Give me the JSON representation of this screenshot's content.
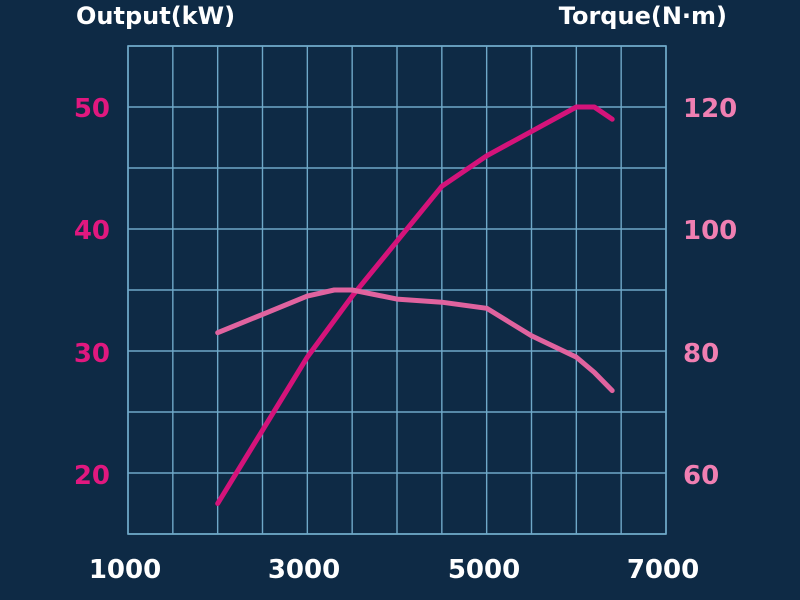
{
  "chart_data": {
    "type": "line",
    "title": "",
    "y_left_label": "Output(kW)",
    "y_right_label": "Torque(N·m)",
    "x_ticks": [
      "1000",
      "3000",
      "5000",
      "7000"
    ],
    "x_range": [
      1000,
      7000
    ],
    "y_left_range": [
      15,
      55
    ],
    "y_left_ticks": [
      "50",
      "40",
      "30",
      "20"
    ],
    "y_right_range": [
      50,
      130
    ],
    "y_right_ticks": [
      "120",
      "100",
      "80",
      "60"
    ],
    "grid": true,
    "series": [
      {
        "axis": "left",
        "color": "#d4137a",
        "x": [
          2000,
          2500,
          3000,
          3500,
          4000,
          4500,
          5000,
          5500,
          6000,
          6200,
          6400
        ],
        "y": [
          17.5,
          23.5,
          29.5,
          34.5,
          39,
          43.5,
          46,
          48,
          50,
          50,
          49
        ]
      },
      {
        "axis": "right",
        "color": "#e0639f",
        "x": [
          2000,
          2500,
          3000,
          3300,
          3500,
          4000,
          4500,
          5000,
          5500,
          6000,
          6200,
          6400
        ],
        "y": [
          83,
          86,
          89,
          90,
          90,
          88.5,
          88,
          87,
          82.5,
          79,
          76.5,
          73.5
        ]
      }
    ]
  },
  "colors": {
    "background": "#0e2a45",
    "grid": "#6fa8c8",
    "left_ticks": "#e0187f",
    "right_ticks": "#f07fb2"
  }
}
